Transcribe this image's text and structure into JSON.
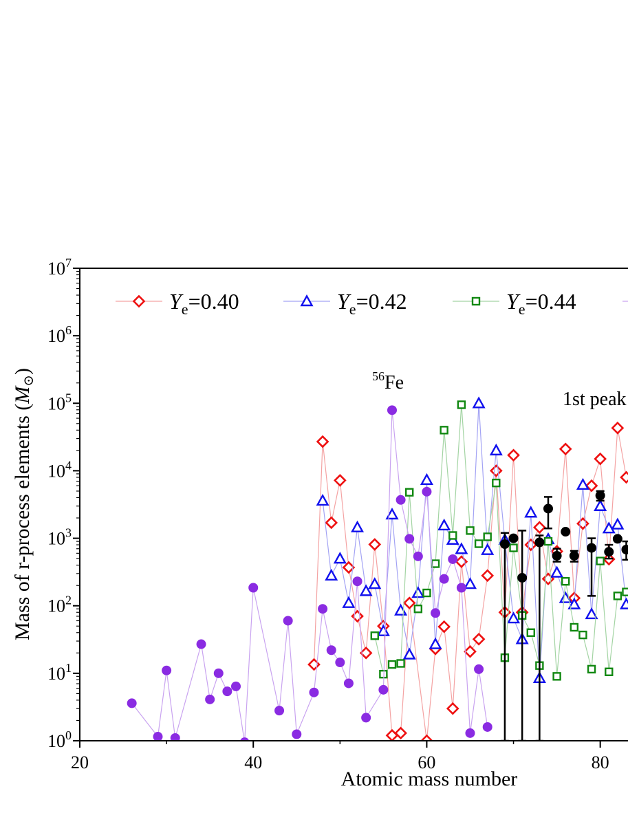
{
  "chart_data": {
    "type": "scatter",
    "xlabel": "Atomic mass number",
    "ylabel": "Mass of r-process elements (M⊙)",
    "ylabel_prefix": "Mass of r-process elements (",
    "ylabel_symbol": "M",
    "ylabel_suffix": ")",
    "y_scale": "log",
    "xlim": [
      20,
      83.2
    ],
    "ylim": [
      1,
      10000000
    ],
    "x_ticks": [
      20,
      40,
      60,
      80
    ],
    "x_tick_labels": [
      "20",
      "40",
      "60",
      "80"
    ],
    "y_ticks": [
      1,
      10,
      100,
      1000,
      10000,
      100000,
      1000000,
      10000000
    ],
    "y_tick_exponents": [
      "0",
      "1",
      "2",
      "3",
      "4",
      "5",
      "6",
      "7"
    ],
    "y_tick_base": "10",
    "grid": false,
    "legend_position": "top",
    "annotations": [
      {
        "text_sup": "56",
        "text": "Fe",
        "x": 56,
        "y": 280000
      },
      {
        "text": "1st peak",
        "x": 81.7,
        "y": 130000
      }
    ],
    "series": [
      {
        "name": "Ye=0.40",
        "legend_italic": "Y",
        "legend_sub": "e",
        "legend_value": "=0.40",
        "marker": "diamond",
        "color": "#ee1111",
        "line_color": "#f4a3a3",
        "points": [
          [
            47,
            13.5
          ],
          [
            48,
            27000
          ],
          [
            49,
            1700
          ],
          [
            50,
            7200
          ],
          [
            51,
            370
          ],
          [
            52,
            70
          ],
          [
            53,
            20
          ],
          [
            54,
            810
          ],
          [
            55,
            50
          ],
          [
            56,
            1.2
          ],
          [
            57,
            1.3
          ],
          [
            58,
            110
          ],
          [
            60,
            1.0
          ],
          [
            61,
            23
          ],
          [
            62,
            49
          ],
          [
            63,
            3.0
          ],
          [
            64,
            450
          ],
          [
            65,
            21
          ],
          [
            66,
            32
          ],
          [
            67,
            280
          ],
          [
            68,
            10000
          ],
          [
            69,
            80
          ],
          [
            70,
            17000
          ],
          [
            71,
            80
          ],
          [
            72,
            800
          ],
          [
            73,
            1450
          ],
          [
            74,
            250
          ],
          [
            75,
            640
          ],
          [
            76,
            21000
          ],
          [
            77,
            130
          ],
          [
            78,
            1650
          ],
          [
            79,
            6000
          ],
          [
            80,
            15000
          ],
          [
            81,
            490
          ],
          [
            82,
            43000
          ],
          [
            83,
            8000
          ]
        ]
      },
      {
        "name": "Ye=0.42",
        "legend_italic": "Y",
        "legend_sub": "e",
        "legend_value": "=0.42",
        "marker": "triangle",
        "color": "#1111ee",
        "line_color": "#a3a3f4",
        "points": [
          [
            48,
            3600
          ],
          [
            49,
            280
          ],
          [
            50,
            500
          ],
          [
            51,
            110
          ],
          [
            52,
            1450
          ],
          [
            53,
            165
          ],
          [
            54,
            210
          ],
          [
            55,
            42
          ],
          [
            56,
            2250
          ],
          [
            57,
            85
          ],
          [
            58,
            19
          ],
          [
            59,
            155
          ],
          [
            60,
            7300
          ],
          [
            61,
            27
          ],
          [
            62,
            1550
          ],
          [
            63,
            950
          ],
          [
            64,
            690
          ],
          [
            65,
            210
          ],
          [
            66,
            100000
          ],
          [
            67,
            670
          ],
          [
            68,
            20000
          ],
          [
            69,
            950
          ],
          [
            70,
            65
          ],
          [
            71,
            32
          ],
          [
            72,
            2400
          ],
          [
            73,
            8.5
          ],
          [
            74,
            970
          ],
          [
            75,
            310
          ],
          [
            76,
            130
          ],
          [
            77,
            105
          ],
          [
            78,
            6200
          ],
          [
            79,
            75
          ],
          [
            80,
            3000
          ],
          [
            81,
            1400
          ],
          [
            82,
            1600
          ],
          [
            83,
            105
          ]
        ]
      },
      {
        "name": "Ye=0.44",
        "legend_italic": "Y",
        "legend_sub": "e",
        "legend_value": "=0.44",
        "marker": "square",
        "color": "#118811",
        "line_color": "#a3d4a3",
        "points": [
          [
            54,
            36
          ],
          [
            55,
            9.7
          ],
          [
            56,
            13.5
          ],
          [
            57,
            14
          ],
          [
            58,
            4800
          ],
          [
            59,
            90
          ],
          [
            60,
            155
          ],
          [
            61,
            420
          ],
          [
            62,
            40000
          ],
          [
            63,
            1100
          ],
          [
            64,
            95000
          ],
          [
            65,
            1300
          ],
          [
            66,
            830
          ],
          [
            67,
            1050
          ],
          [
            68,
            6600
          ],
          [
            69,
            17
          ],
          [
            70,
            720
          ],
          [
            71,
            72
          ],
          [
            72,
            40
          ],
          [
            73,
            13
          ],
          [
            74,
            900
          ],
          [
            75,
            9
          ],
          [
            76,
            230
          ],
          [
            77,
            48
          ],
          [
            78,
            37
          ],
          [
            79,
            11.5
          ],
          [
            80,
            460
          ],
          [
            81,
            10.5
          ],
          [
            82,
            140
          ],
          [
            83,
            160
          ]
        ]
      },
      {
        "name": "",
        "marker": "circle",
        "color": "#8a2be2",
        "line_color": "#c9a3f0",
        "in_legend": true,
        "points": [
          [
            26,
            3.6
          ],
          [
            29,
            1.15
          ],
          [
            30,
            11
          ],
          [
            31,
            1.1
          ],
          [
            34,
            27
          ],
          [
            35,
            4.1
          ],
          [
            36,
            10
          ],
          [
            37,
            5.4
          ],
          [
            38,
            6.4
          ],
          [
            39,
            0.95
          ],
          [
            40,
            185
          ],
          [
            43,
            2.8
          ],
          [
            44,
            60
          ],
          [
            45,
            1.25
          ],
          [
            47,
            5.2
          ],
          [
            48,
            90
          ],
          [
            49,
            22
          ],
          [
            50,
            14.5
          ],
          [
            51,
            7.1
          ],
          [
            52,
            230
          ],
          [
            53,
            2.2
          ],
          [
            55,
            5.7
          ],
          [
            56,
            79000
          ],
          [
            57,
            3700
          ],
          [
            58,
            980
          ],
          [
            59,
            540
          ],
          [
            60,
            4900
          ],
          [
            61,
            78
          ],
          [
            62,
            250
          ],
          [
            63,
            490
          ],
          [
            64,
            185
          ],
          [
            65,
            1.3
          ],
          [
            66,
            11.5
          ],
          [
            67,
            1.6
          ]
        ]
      },
      {
        "name": "",
        "marker": "filled-circle-errorbar",
        "color": "#000000",
        "points": [
          [
            69,
            820
          ],
          [
            70,
            1000
          ],
          [
            71,
            260
          ],
          [
            73,
            870
          ],
          [
            74,
            2750
          ],
          [
            75,
            550
          ],
          [
            76,
            1250
          ],
          [
            77,
            550
          ],
          [
            79,
            720
          ],
          [
            80,
            4300
          ],
          [
            81,
            630
          ],
          [
            82,
            980
          ],
          [
            83,
            680
          ]
        ],
        "errors_low": [
          [
            69,
            1
          ],
          [
            71,
            1
          ],
          [
            73,
            1
          ],
          [
            74,
            1400
          ],
          [
            75,
            450
          ],
          [
            77,
            450
          ],
          [
            79,
            140
          ],
          [
            80,
            3600
          ],
          [
            81,
            500
          ],
          [
            83,
            480
          ]
        ],
        "errors_high": [
          [
            69,
            1200
          ],
          [
            71,
            1300
          ],
          [
            73,
            1100
          ],
          [
            74,
            4100
          ],
          [
            75,
            700
          ],
          [
            77,
            650
          ],
          [
            79,
            1000
          ],
          [
            80,
            5000
          ],
          [
            81,
            800
          ],
          [
            83,
            900
          ]
        ]
      }
    ]
  }
}
